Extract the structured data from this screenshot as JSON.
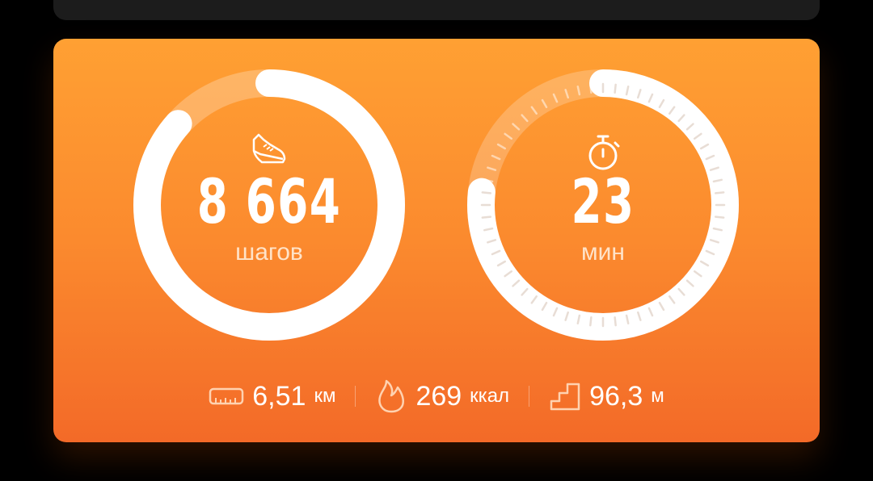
{
  "steps": {
    "value": "8 664",
    "unit": "шагов",
    "progress": 0.866,
    "icon": "sneaker-icon"
  },
  "active": {
    "value": "23",
    "unit": "мин",
    "progress": 0.767,
    "icon": "stopwatch-icon"
  },
  "stats": [
    {
      "icon": "ruler-icon",
      "value": "6,51",
      "unit": "км"
    },
    {
      "icon": "flame-icon",
      "value": "269",
      "unit": "ккал"
    },
    {
      "icon": "stairs-icon",
      "value": "96,3",
      "unit": "м"
    }
  ],
  "colors": {
    "gradient_top": "#ffa033",
    "gradient_bottom": "#f36a28",
    "ring": "#ffffff"
  }
}
